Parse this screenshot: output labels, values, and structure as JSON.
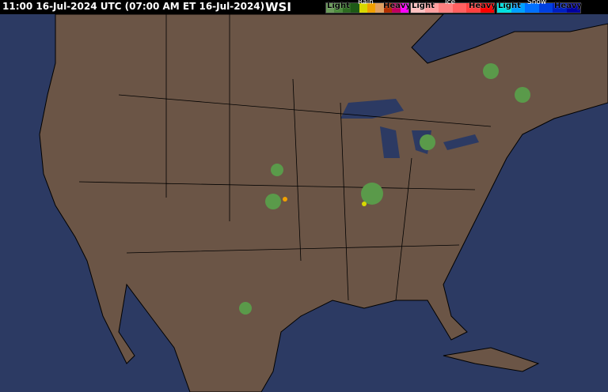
{
  "header": {
    "timestamp": "11:00 16-Jul-2024 UTC  (07:00 AM ET 16-Jul-2024)",
    "logo": "WSI"
  },
  "legend": {
    "rain": {
      "label": "Rain",
      "light": "Light",
      "heavy": "Heavy",
      "colors": [
        "#6a9a5a",
        "#4c8a3c",
        "#2e6a22",
        "#1e5a16",
        "#d8d800",
        "#f0a000",
        "#e0a060",
        "#b03000",
        "#c00060",
        "#ff00ff"
      ]
    },
    "ice": {
      "label": "Ice",
      "light": "Light",
      "heavy": "Heavy",
      "colors": [
        "#ffc0c0",
        "#ffa0a0",
        "#ff8080",
        "#ff6060",
        "#ff4040",
        "#ff0000"
      ]
    },
    "snow": {
      "label": "Snow",
      "light": "Light",
      "heavy": "Heavy",
      "colors": [
        "#00e0e0",
        "#00a0ff",
        "#0070ff",
        "#0040e0",
        "#0020c0",
        "#0000a0"
      ]
    }
  },
  "colors": {
    "ocean": "#2c3a63",
    "land": "#6b5546",
    "borders": "#000000",
    "lakes": "#2c3a63"
  }
}
